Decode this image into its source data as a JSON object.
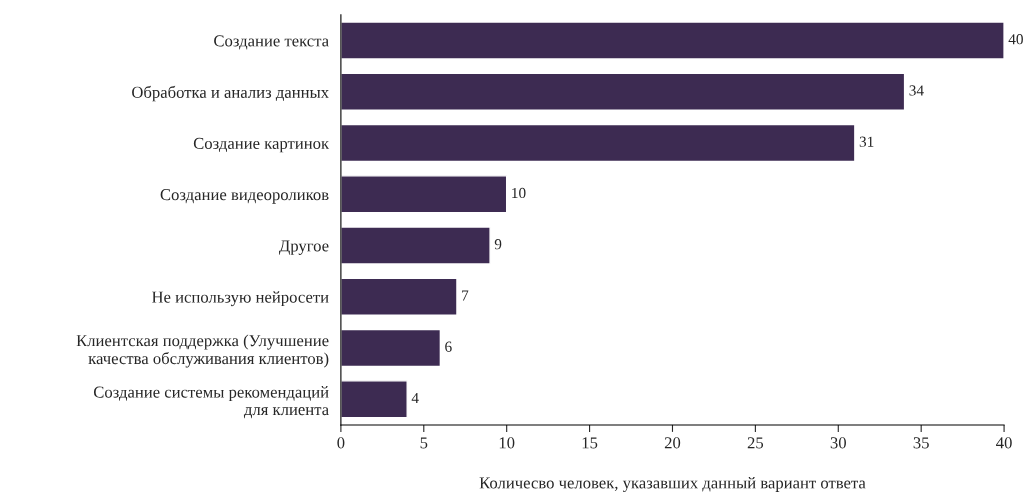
{
  "chart_data": {
    "type": "bar",
    "orientation": "horizontal",
    "categories": [
      "Создание текста",
      "Обработка и анализ данных",
      "Создание картинок",
      "Создание видеороликов",
      "Другое",
      "Не использую нейросети",
      "Клиентская поддержка (Улучшение\nкачества обслуживания клиентов)",
      "Создание системы рекомендаций\nдля клиента"
    ],
    "values": [
      40,
      34,
      31,
      10,
      9,
      7,
      6,
      4
    ],
    "color": "#3d2b52",
    "xlim": [
      0,
      40
    ],
    "xticks": [
      0,
      5,
      10,
      15,
      20,
      25,
      30,
      35,
      40
    ],
    "xlabel": "Количесво человек, указавших данный вариант ответа",
    "data_labels": true,
    "grid": false,
    "legend": false
  }
}
